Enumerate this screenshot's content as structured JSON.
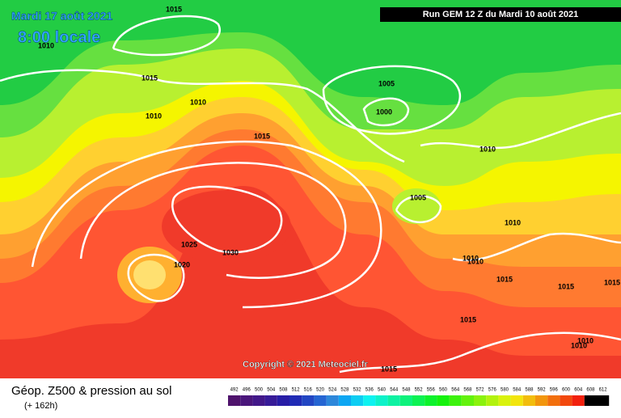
{
  "header": {
    "date": "Mardi 17 août 2021",
    "time": "8:00 locale",
    "run": "Run GEM 12 Z du Mardi 10 août 2021"
  },
  "footer": {
    "title": "Géop. Z500 & pression au sol",
    "lead": "(+ 162h)",
    "copyright": "Copyright © 2021 Meteociel.fr"
  },
  "scale": {
    "labels": [
      492,
      496,
      500,
      504,
      508,
      512,
      516,
      520,
      524,
      528,
      532,
      536,
      540,
      544,
      548,
      552,
      556,
      560,
      564,
      568,
      572,
      576,
      580,
      584,
      588,
      592,
      596,
      600,
      604,
      608,
      612
    ]
  },
  "isobars": {
    "labels": [
      1015,
      1010,
      1015,
      1010,
      1010,
      1005,
      1000,
      1015,
      1010,
      1005,
      1010,
      1025,
      1030,
      1020,
      1010,
      1010,
      1015,
      1015,
      1015,
      1015,
      1010,
      1010,
      1015
    ]
  }
}
